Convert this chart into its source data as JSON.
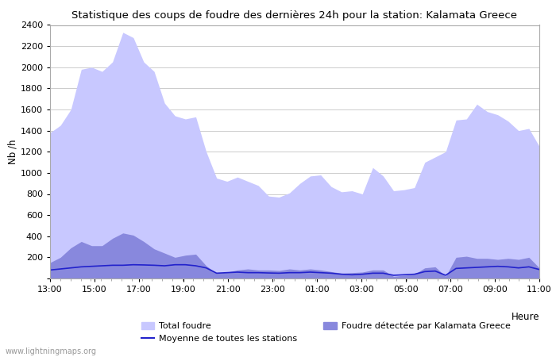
{
  "title": "Statistique des coups de foudre des dernières 24h pour la station: Kalamata Greece",
  "xlabel": "Heure",
  "ylabel": "Nb /h",
  "watermark": "www.lightningmaps.org",
  "xtick_labels": [
    "13:00",
    "15:00",
    "17:00",
    "19:00",
    "21:00",
    "23:00",
    "01:00",
    "03:00",
    "05:00",
    "07:00",
    "09:00",
    "11:00"
  ],
  "ylim": [
    0,
    2400
  ],
  "yticks": [
    0,
    200,
    400,
    600,
    800,
    1000,
    1200,
    1400,
    1600,
    1800,
    2000,
    2200,
    2400
  ],
  "color_total": "#c8c8ff",
  "color_detected": "#8888dd",
  "color_moyenne": "#2222cc",
  "bg_color": "#ffffff",
  "legend_total": "Total foudre",
  "legend_detected": "Foudre détectée par Kalamata Greece",
  "legend_moyenne": "Moyenne de toutes les stations",
  "total_foudre": [
    1380,
    1450,
    1600,
    1980,
    2000,
    1960,
    2050,
    2330,
    2280,
    2050,
    1960,
    1660,
    1540,
    1510,
    1530,
    1200,
    950,
    920,
    960,
    920,
    880,
    780,
    770,
    810,
    900,
    970,
    980,
    870,
    820,
    830,
    800,
    1050,
    970,
    830,
    840,
    860,
    1100,
    1150,
    1200,
    1500,
    1510,
    1650,
    1580,
    1550,
    1490,
    1400,
    1420,
    1250
  ],
  "detected_foudre": [
    150,
    200,
    290,
    350,
    310,
    310,
    380,
    430,
    410,
    350,
    280,
    240,
    200,
    220,
    230,
    120,
    50,
    60,
    80,
    90,
    80,
    80,
    75,
    90,
    80,
    90,
    80,
    65,
    50,
    55,
    60,
    80,
    80,
    20,
    30,
    40,
    100,
    110,
    20,
    200,
    210,
    190,
    190,
    180,
    190,
    180,
    200,
    100
  ],
  "moyenne": [
    80,
    90,
    100,
    110,
    115,
    120,
    125,
    125,
    130,
    128,
    125,
    120,
    130,
    130,
    120,
    100,
    50,
    55,
    60,
    55,
    55,
    52,
    50,
    55,
    55,
    60,
    55,
    50,
    40,
    35,
    40,
    50,
    50,
    30,
    35,
    40,
    65,
    70,
    30,
    95,
    100,
    105,
    110,
    115,
    110,
    100,
    110,
    85
  ]
}
